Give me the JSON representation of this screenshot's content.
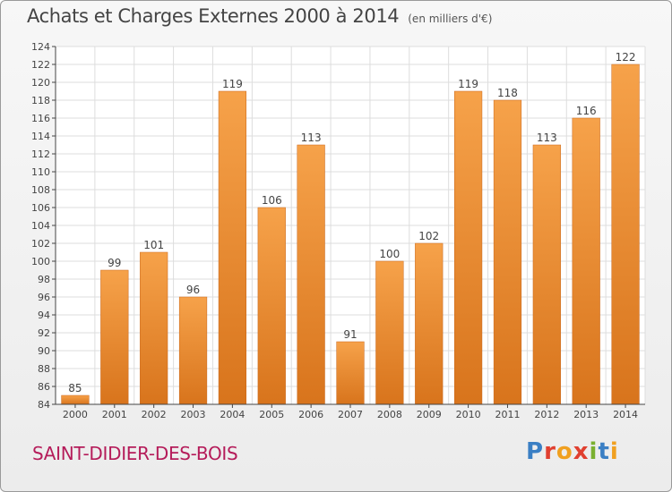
{
  "header": {
    "title": "Achats et Charges Externes 2000 à 2014",
    "unit": "(en milliers d'€)"
  },
  "footer": {
    "place": "SAINT-DIDIER-DES-BOIS",
    "logo": "Proxiti"
  },
  "colors": {
    "bar_light": "#f6a24a",
    "bar_dark": "#d8741c",
    "grid": "#dddddd",
    "axis": "#444444",
    "place": "#b51c5a"
  },
  "chart_data": {
    "type": "bar",
    "title": "Achats et Charges Externes 2000 à 2014",
    "subtitle": "(en milliers d'€)",
    "xlabel": "",
    "ylabel": "",
    "categories": [
      "2000",
      "2001",
      "2002",
      "2003",
      "2004",
      "2005",
      "2006",
      "2007",
      "2008",
      "2009",
      "2010",
      "2011",
      "2012",
      "2013",
      "2014"
    ],
    "values": [
      85,
      99,
      101,
      96,
      119,
      106,
      113,
      91,
      100,
      102,
      119,
      118,
      113,
      116,
      122
    ],
    "ylim": [
      84,
      124
    ],
    "yticks": [
      84,
      86,
      88,
      90,
      92,
      94,
      96,
      98,
      100,
      102,
      104,
      106,
      108,
      110,
      112,
      114,
      116,
      118,
      120,
      122,
      124
    ],
    "grid": true,
    "legend": "none"
  }
}
